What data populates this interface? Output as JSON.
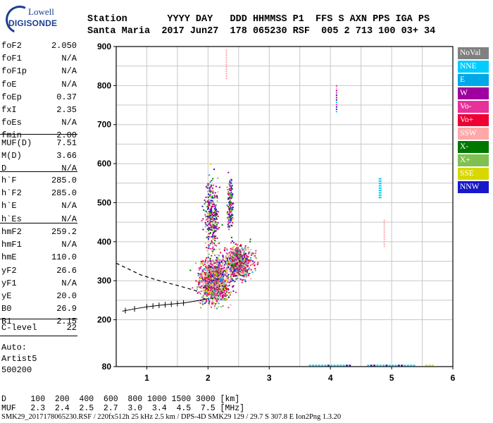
{
  "logo": {
    "line1": "Lowell",
    "line2": "DIGISONDE"
  },
  "header": {
    "line1": "Station       YYYY DAY   DDD HHMMSS P1  FFS S AXN PPS IGA PS",
    "line2": "Santa Maria  2017 Jun27  178 065230 RSF  005 2 713 100 03+ 34"
  },
  "params": {
    "group1": [
      {
        "key": "foF2",
        "value": "2.050"
      },
      {
        "key": "foF1",
        "value": "N/A"
      },
      {
        "key": "foF1p",
        "value": "N/A"
      },
      {
        "key": "foE",
        "value": "N/A"
      },
      {
        "key": "foEp",
        "value": "0.37"
      },
      {
        "key": "fxI",
        "value": "2.35"
      },
      {
        "key": "foEs",
        "value": "N/A"
      },
      {
        "key": "fmin",
        "value": "2.00"
      }
    ],
    "group2": [
      {
        "key": "MUF(D)",
        "value": "7.51"
      },
      {
        "key": "M(D)",
        "value": "3.66"
      },
      {
        "key": "D",
        "value": "N/A"
      }
    ],
    "group3": [
      {
        "key": "h`F",
        "value": "285.0"
      },
      {
        "key": "h`F2",
        "value": "285.0"
      },
      {
        "key": "h`E",
        "value": "N/A"
      },
      {
        "key": "h`Es",
        "value": "N/A"
      }
    ],
    "group4": [
      {
        "key": "hmF2",
        "value": "259.2"
      },
      {
        "key": "hmF1",
        "value": "N/A"
      },
      {
        "key": "hmE",
        "value": "110.0"
      },
      {
        "key": "yF2",
        "value": "26.6"
      },
      {
        "key": "yF1",
        "value": "N/A"
      },
      {
        "key": "yE",
        "value": "20.0"
      },
      {
        "key": "B0",
        "value": "26.9"
      },
      {
        "key": "B1",
        "value": "2.15"
      }
    ],
    "group5": [
      {
        "key": "C-level",
        "value": "22"
      }
    ],
    "auto": [
      "Auto:",
      "Artist5",
      "500200"
    ]
  },
  "bottom": {
    "row_d": "D     100  200  400  600  800 1000 1500 3000 [km]",
    "row_muf": "MUF   2.3  2.4  2.5  2.7  3.0  3.4  4.5  7.5 [MHz]",
    "footer": "SMK29_2017178065230.RSF / 220fx512h 25 kHz 2.5 km / DPS-4D SMK29 129 / 29.7 S 307.8 E Ion2Png 1.3.20"
  },
  "chart_data": {
    "type": "scatter",
    "xlim": [
      0.5,
      6
    ],
    "ylim": [
      80,
      900
    ],
    "x_ticks": [
      1,
      2,
      3,
      4,
      5,
      6
    ],
    "y_ticks": [
      80,
      200,
      300,
      400,
      500,
      600,
      700,
      800,
      900
    ],
    "x_grid": [
      1,
      1.5,
      2,
      2.5,
      3,
      3.5,
      4,
      4.5,
      5,
      5.5
    ],
    "y_grid": [
      200,
      250,
      300,
      350,
      400,
      450,
      500,
      550,
      600,
      650,
      700,
      750,
      800,
      850
    ],
    "legend": [
      {
        "label": "NoVal",
        "color": "#808080"
      },
      {
        "label": "NNE",
        "color": "#00ccff"
      },
      {
        "label": "E",
        "color": "#00a8e8"
      },
      {
        "label": "W",
        "color": "#a000a0"
      },
      {
        "label": "Vo-",
        "color": "#e8309a"
      },
      {
        "label": "Vo+",
        "color": "#ee0033"
      },
      {
        "label": "SSW",
        "color": "#ffa8a8"
      },
      {
        "label": "X-",
        "color": "#007800"
      },
      {
        "label": "X+",
        "color": "#80c050"
      },
      {
        "label": "SSE",
        "color": "#d8d800"
      },
      {
        "label": "NNW",
        "color": "#1818c8"
      }
    ],
    "x_profile_curve": [
      [
        0.5,
        345
      ],
      [
        0.7,
        330
      ],
      [
        0.9,
        315
      ],
      [
        1.1,
        305
      ],
      [
        1.3,
        296
      ],
      [
        1.5,
        288
      ],
      [
        1.7,
        279
      ],
      [
        1.85,
        272
      ]
    ],
    "trace_curve": [
      [
        0.6,
        222
      ],
      [
        0.8,
        228
      ],
      [
        1.0,
        233
      ],
      [
        1.2,
        237
      ],
      [
        1.4,
        240
      ],
      [
        1.6,
        243
      ],
      [
        1.8,
        248
      ],
      [
        2.0,
        254
      ]
    ],
    "trace_ticks": [
      0.65,
      0.8,
      1.0,
      1.1,
      1.2,
      1.3,
      1.4,
      1.5,
      1.6
    ],
    "clusters": [
      {
        "cx": 2.1,
        "cy": 300,
        "sx": 0.25,
        "sy": 55,
        "n": 1100
      },
      {
        "cx": 2.5,
        "cy": 350,
        "sx": 0.22,
        "sy": 40,
        "n": 700
      },
      {
        "cx": 2.05,
        "cy": 470,
        "sx": 0.12,
        "sy": 95,
        "n": 300
      },
      {
        "cx": 2.35,
        "cy": 500,
        "sx": 0.05,
        "sy": 70,
        "n": 150
      }
    ],
    "vertical_streaks": [
      {
        "x": 2.3,
        "y1": 820,
        "y2": 895,
        "color": "#ffa8a8"
      },
      {
        "x": 4.1,
        "y1": 735,
        "y2": 805,
        "color": "mixed"
      },
      {
        "x": 4.8,
        "y1": 515,
        "y2": 565,
        "color": "#00ccff"
      },
      {
        "x": 4.88,
        "y1": 390,
        "y2": 460,
        "color": "#ffa8a8"
      }
    ],
    "baseline_dashes": [
      {
        "x1": 3.65,
        "x2": 4.3,
        "y": 83,
        "color": "#00ccff"
      },
      {
        "x1": 4.6,
        "x2": 5.35,
        "y": 83,
        "color": "#00ccff"
      },
      {
        "x1": 5.55,
        "x2": 5.65,
        "y": 83,
        "color": "#d8d800"
      }
    ]
  }
}
